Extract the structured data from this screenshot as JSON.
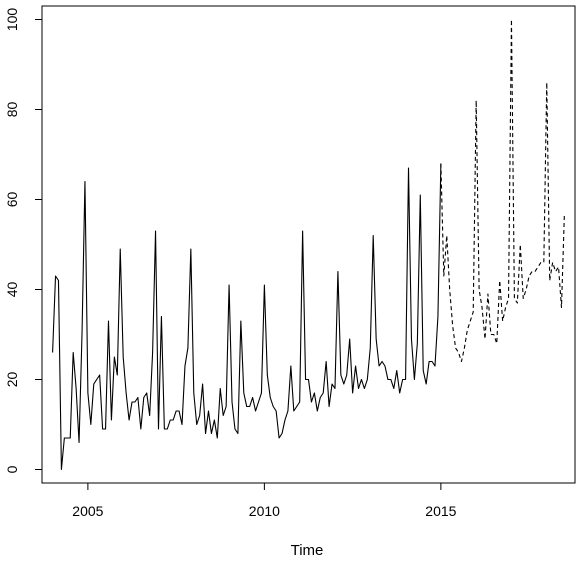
{
  "chart_data": {
    "type": "line",
    "title": "",
    "xlabel": "Time",
    "ylabel": "",
    "xlim": [
      2003.7,
      2018.8
    ],
    "ylim": [
      -3,
      103
    ],
    "x_ticks": [
      2005,
      2010,
      2015
    ],
    "x_tick_labels": [
      "2005",
      "2010",
      "2015"
    ],
    "y_ticks": [
      0,
      20,
      40,
      60,
      80,
      100
    ],
    "y_tick_labels": [
      "0",
      "20",
      "40",
      "60",
      "80",
      "100"
    ],
    "grid": false,
    "legend": "none",
    "series": [
      {
        "style": "solid",
        "color": "#000000",
        "x_start": 2004.0,
        "x_step": 0.08333333,
        "values": [
          26,
          43,
          42,
          0,
          7,
          7,
          7,
          26,
          18,
          6,
          30,
          64,
          17,
          10,
          19,
          20,
          21,
          9,
          9,
          33,
          11,
          25,
          21,
          49,
          25,
          17,
          11,
          15,
          15,
          16,
          9,
          16,
          17,
          12,
          26,
          53,
          9,
          34,
          9,
          9,
          11,
          11,
          13,
          13,
          10,
          23,
          27,
          49,
          17,
          10,
          12,
          19,
          8,
          13,
          8,
          11,
          7,
          18,
          12,
          14,
          41,
          15,
          9,
          8,
          33,
          17,
          14,
          14,
          16,
          13,
          15,
          17,
          41,
          21,
          16,
          14,
          13,
          7,
          8,
          11,
          13,
          23,
          13,
          14,
          15,
          53,
          20,
          20,
          15,
          17,
          13,
          16,
          17,
          24,
          14,
          19,
          18,
          44,
          21,
          19,
          21,
          29,
          17,
          23,
          18,
          20,
          18,
          20,
          27,
          52,
          29,
          23,
          24,
          23,
          20,
          20,
          18,
          22,
          17,
          20,
          20,
          67,
          29,
          20,
          28,
          61,
          22,
          19,
          24,
          24,
          23,
          34,
          68
        ]
      },
      {
        "style": "dashed",
        "color": "#000000",
        "x_start": 2015.0,
        "x_step": 0.08333333,
        "values": [
          68,
          43,
          52,
          40,
          32,
          27,
          26,
          24,
          27,
          31,
          33,
          35,
          82,
          40,
          36,
          29,
          39,
          30,
          30,
          28,
          42,
          33,
          36,
          38,
          100,
          38,
          37,
          50,
          38,
          40,
          43,
          44,
          44,
          45,
          46,
          46,
          86,
          42,
          46,
          44,
          45,
          36,
          57
        ]
      }
    ]
  }
}
